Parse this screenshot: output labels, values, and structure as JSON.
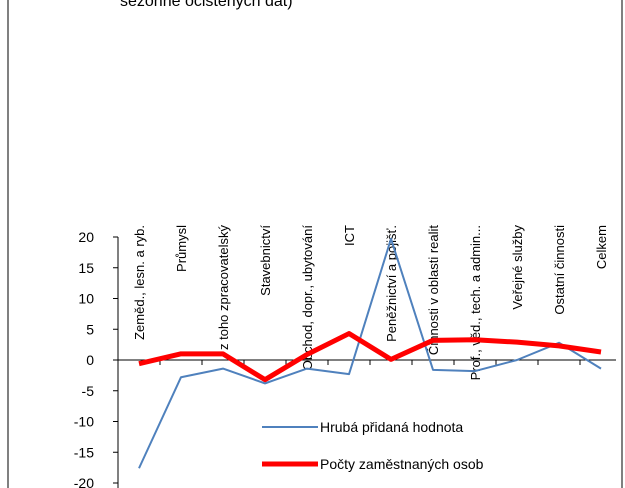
{
  "chart_data": {
    "type": "line",
    "title": "sezónně očištěných dat)",
    "categories": [
      "Zeměd., lesn. a ryb.",
      "Průmysl",
      "z toho zpracovatelský",
      "Stavebnictví",
      "Obchod, dopr., ubytování",
      "ICT",
      "Peněžnictví a pojišť.",
      "Činnosti v oblasti realit",
      "Prof., věd., tech. a admin...",
      "Veřejné služby",
      "Ostatní činnosti",
      "Celkem"
    ],
    "series": [
      {
        "name": "Hrubá přidaná hodnota",
        "color": "#4f81bd",
        "width": 2,
        "values": [
          -17.6,
          -2.8,
          -1.4,
          -3.8,
          -1.4,
          -2.3,
          19.7,
          -1.6,
          -1.8,
          0,
          2.8,
          -1.4
        ]
      },
      {
        "name": "Počty zaměstnaných osob",
        "color": "#ff0000",
        "width": 5,
        "values": [
          -0.6,
          1.0,
          1.0,
          -3.2,
          0.9,
          4.3,
          0.1,
          3.2,
          3.3,
          2.9,
          2.3,
          1.3
        ]
      }
    ],
    "ylim": [
      -20,
      20
    ],
    "yticks": [
      -20,
      -15,
      -10,
      -5,
      0,
      5,
      10,
      15,
      20
    ],
    "grid": false
  }
}
